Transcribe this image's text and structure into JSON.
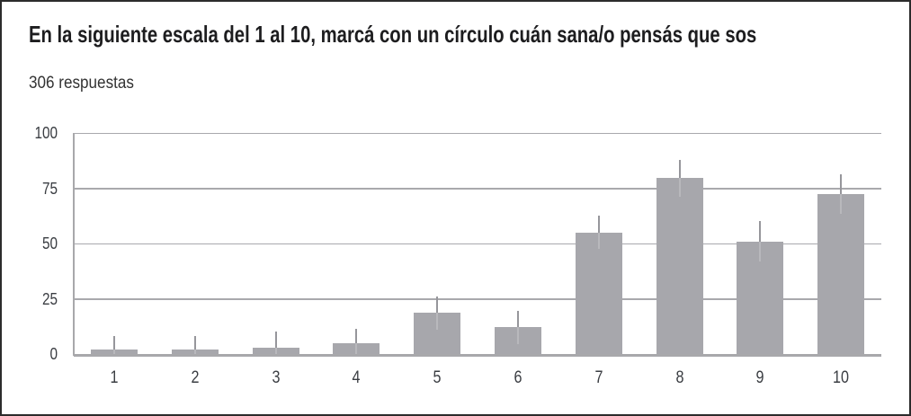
{
  "header": {
    "title": "En la siguiente escala del 1 al 10, marcá con un círculo cuán sana/o pensás que sos",
    "responses_count": "306 respuestas"
  },
  "colors": {
    "frame_border": "#2c2c2c",
    "title_text": "#1d1d1f",
    "subtitle_text": "#333333",
    "bar": "#a7a7ac",
    "whisker": "#96969b",
    "whisker_on_bar": "#b8b8bc",
    "gridline": "#a9a9ad",
    "baseline": "#a8a8ab",
    "tick_label": "#3a3d42"
  },
  "chart_data": {
    "type": "bar",
    "title": "En la siguiente escala del 1 al 10, marcá con un círculo cuán sana/o pensás que sos",
    "subtitle": "306 respuestas",
    "categories": [
      "1",
      "2",
      "3",
      "4",
      "5",
      "6",
      "7",
      "8",
      "9",
      "10"
    ],
    "values": [
      2,
      2,
      3,
      5,
      18.5,
      12,
      55,
      79.5,
      51,
      72.5
    ],
    "error_whisker_top": [
      8,
      8,
      10,
      11.5,
      26,
      19.5,
      62.5,
      88,
      60,
      81.5
    ],
    "xlabel": "",
    "ylabel": "",
    "ylim": [
      0,
      100
    ],
    "yticks": [
      0,
      25,
      50,
      75,
      100
    ],
    "ytick_labels": [
      "0",
      "25",
      "50",
      "75",
      "100"
    ],
    "grid": true,
    "legend": false,
    "bar_color": "#a7a7ac"
  }
}
